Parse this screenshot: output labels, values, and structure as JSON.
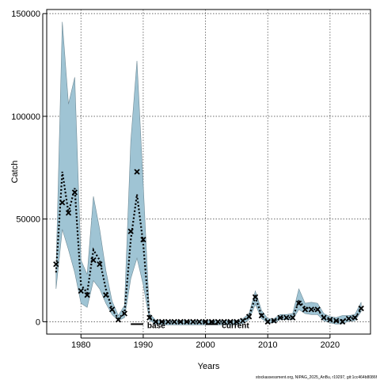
{
  "chart_data": {
    "type": "line",
    "title": "",
    "xlabel": "Years",
    "ylabel": "Catch",
    "xlim": [
      1974.5,
      2026.5
    ],
    "ylim": [
      -6000,
      152000
    ],
    "x_ticks": [
      1980,
      1990,
      2000,
      2010,
      2020
    ],
    "y_ticks": [
      0,
      50000,
      100000,
      150000
    ],
    "grid": true,
    "x": [
      1976,
      1977,
      1978,
      1979,
      1980,
      1981,
      1982,
      1983,
      1984,
      1985,
      1986,
      1987,
      1988,
      1989,
      1990,
      1991,
      1992,
      1993,
      1994,
      1995,
      1996,
      1997,
      1998,
      1999,
      2000,
      2001,
      2002,
      2003,
      2004,
      2005,
      2006,
      2007,
      2008,
      2009,
      2010,
      2011,
      2012,
      2013,
      2014,
      2015,
      2016,
      2017,
      2018,
      2019,
      2020,
      2021,
      2022,
      2023,
      2024,
      2025
    ],
    "series": [
      {
        "style": "band",
        "color": "#9fc4d4",
        "upper": [
          25000,
          146000,
          106000,
          119000,
          30000,
          23000,
          61000,
          45000,
          25000,
          10000,
          3000,
          8000,
          88000,
          127000,
          67000,
          4000,
          800,
          600,
          600,
          600,
          600,
          600,
          600,
          600,
          600,
          600,
          600,
          600,
          600,
          600,
          1500,
          4000,
          15000,
          5500,
          1500,
          1500,
          3500,
          3500,
          4000,
          16000,
          9000,
          9500,
          9000,
          4000,
          2500,
          2000,
          3000,
          3000,
          3500,
          9500
        ],
        "lower": [
          16000,
          45000,
          35000,
          24000,
          9000,
          7000,
          20000,
          16000,
          9000,
          3500,
          600,
          2000,
          21000,
          31000,
          18000,
          800,
          -1200,
          -1500,
          -1500,
          -1500,
          -1500,
          -1500,
          -1500,
          -1500,
          -1500,
          -1500,
          -1500,
          -1500,
          -1500,
          -1500,
          -800,
          1000,
          8500,
          1500,
          -500,
          -500,
          1000,
          1000,
          1000,
          6000,
          4000,
          3500,
          3500,
          500,
          -500,
          -1200,
          -1000,
          200,
          500,
          5000
        ]
      },
      {
        "style": "dotted-line",
        "color": "#000000",
        "values": [
          24000,
          73000,
          53000,
          65000,
          18000,
          14000,
          35000,
          30000,
          16000,
          6000,
          1500,
          4500,
          40000,
          62000,
          38000,
          2000,
          0,
          0,
          0,
          0,
          0,
          0,
          0,
          0,
          0,
          0,
          0,
          0,
          0,
          0,
          500,
          2500,
          12000,
          3000,
          500,
          500,
          2000,
          2000,
          2000,
          10000,
          7000,
          6000,
          6000,
          2000,
          1000,
          0,
          1000,
          1500,
          2000,
          6000
        ]
      },
      {
        "style": "x-markers",
        "color": "#000000",
        "values": [
          28000,
          58000,
          53000,
          63000,
          15000,
          13000,
          30000,
          28000,
          13000,
          6000,
          1000,
          4000,
          44000,
          73000,
          40000,
          2000,
          0,
          0,
          0,
          0,
          0,
          0,
          0,
          0,
          0,
          0,
          0,
          0,
          0,
          0,
          500,
          2500,
          12000,
          3000,
          0,
          500,
          2000,
          2000,
          2000,
          9000,
          6000,
          6000,
          6000,
          2000,
          1000,
          500,
          0,
          1500,
          2000,
          6500
        ]
      }
    ],
    "period_markers": [
      {
        "label": "base",
        "x_start": 1988,
        "x_end": 1990
      },
      {
        "label": "current",
        "x_start": 2000,
        "x_end": 2002
      }
    ],
    "source_text": "stockassessment.org, NIPAG_2025_AnBu, r19297, git:1cc464b8086f"
  }
}
